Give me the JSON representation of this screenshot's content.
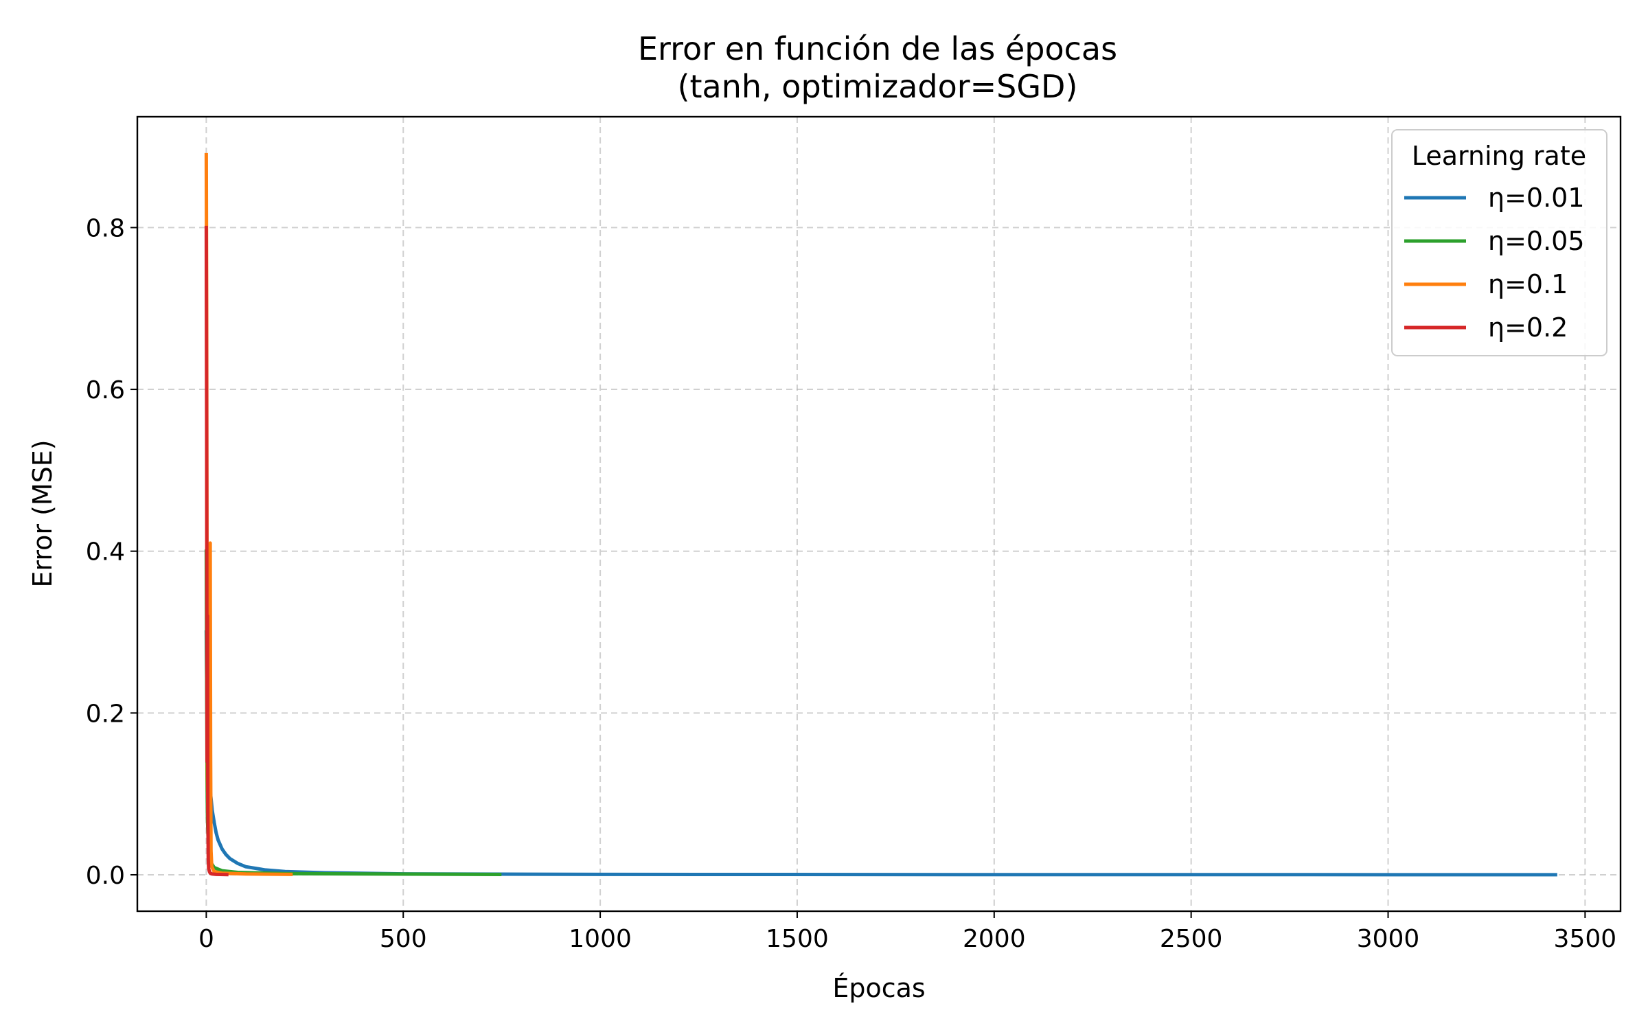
{
  "chart_data": {
    "type": "line",
    "title_line1": "Error en función de las épocas",
    "title_line2": "(tanh, optimizador=SGD)",
    "xlabel": "Épocas",
    "ylabel": "Error (MSE)",
    "xlim": [
      -175,
      3590
    ],
    "ylim": [
      -0.045,
      0.937
    ],
    "xticks": [
      0,
      500,
      1000,
      1500,
      2000,
      2500,
      3000,
      3500
    ],
    "yticks": [
      0.0,
      0.2,
      0.4,
      0.6,
      0.8
    ],
    "ytick_labels": [
      "0.0",
      "0.2",
      "0.4",
      "0.6",
      "0.8"
    ],
    "grid": true,
    "legend": {
      "title": "Learning rate",
      "placement": "top-right"
    },
    "series": [
      {
        "name": "η=0.01",
        "color": "#1f77b4",
        "x": [
          0,
          2,
          4,
          6,
          8,
          10,
          15,
          20,
          25,
          30,
          40,
          50,
          60,
          80,
          100,
          150,
          200,
          300,
          500,
          1000,
          2000,
          3425
        ],
        "y": [
          0.3,
          0.19,
          0.16,
          0.14,
          0.12,
          0.105,
          0.08,
          0.065,
          0.052,
          0.043,
          0.032,
          0.025,
          0.02,
          0.014,
          0.01,
          0.006,
          0.004,
          0.0025,
          0.0012,
          0.0005,
          0.0002,
          0.0001
        ]
      },
      {
        "name": "η=0.05",
        "color": "#2ca02c",
        "x": [
          0,
          1,
          2,
          3,
          5,
          8,
          12,
          20,
          40,
          80,
          200,
          745
        ],
        "y": [
          0.4,
          0.25,
          0.12,
          0.07,
          0.04,
          0.025,
          0.015,
          0.009,
          0.005,
          0.003,
          0.0015,
          0.0004
        ]
      },
      {
        "name": "η=0.1",
        "color": "#ff7f0e",
        "x": [
          0,
          1,
          2,
          3,
          5,
          7,
          9,
          10,
          11,
          12,
          14,
          20,
          40,
          100,
          215
        ],
        "y": [
          0.89,
          0.7,
          0.3,
          0.12,
          0.05,
          0.03,
          0.1,
          0.41,
          0.15,
          0.03,
          0.01,
          0.004,
          0.002,
          0.001,
          0.0005
        ]
      },
      {
        "name": "η=0.2",
        "color": "#d62728",
        "x": [
          0,
          1,
          2,
          3,
          4,
          5,
          6,
          8,
          10,
          15,
          25,
          52
        ],
        "y": [
          0.8,
          0.55,
          0.14,
          0.32,
          0.08,
          0.02,
          0.008,
          0.004,
          0.002,
          0.001,
          0.0005,
          0.0002
        ]
      }
    ]
  }
}
